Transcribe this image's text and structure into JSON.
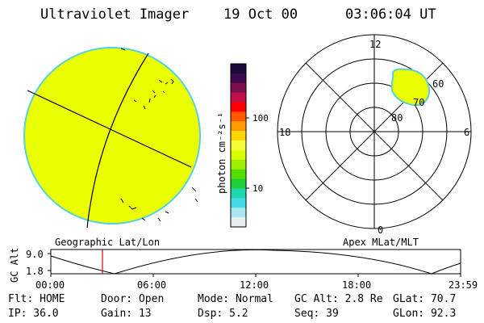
{
  "header": {
    "instrument": "Ultraviolet Imager",
    "date": "19 Oct 00",
    "time": "03:06:04 UT"
  },
  "colors": {
    "disk": "#eaff00",
    "disk_edge": "#57d0e0",
    "line": "#000000",
    "marker": "#e00000"
  },
  "left_panel": {
    "label": "Geographic Lat/Lon"
  },
  "polar_panel": {
    "label": "Apex MLat/MLT",
    "mlt_labels": {
      "top": "12",
      "bottom": "0",
      "left": "18",
      "right": "6"
    },
    "lat_labels": [
      "80",
      "70",
      "60"
    ]
  },
  "colorbar": {
    "unit_label": "photon cm⁻²s⁻¹",
    "ticks": [
      "100",
      "10"
    ],
    "colors": [
      "#1a0a3a",
      "#3b0a4f",
      "#7a0f4a",
      "#c2104a",
      "#ff0000",
      "#ff5a00",
      "#ff9b00",
      "#ffd500",
      "#f4ff3a",
      "#d8ff00",
      "#9bf000",
      "#52e000",
      "#1ecf3a",
      "#20d7b0",
      "#45d8e6",
      "#a8e7ef",
      "#e6eef0"
    ]
  },
  "timeline": {
    "ylabel": "GC Alt",
    "yticks": [
      "9.0",
      "1.8"
    ],
    "xticks": [
      "00:00",
      "06:00",
      "12:00",
      "18:00",
      "23:59"
    ]
  },
  "status": {
    "row1": {
      "flt": "Flt: HOME",
      "door": "Door: Open",
      "mode": "Mode: Normal",
      "gcalt": "GC Alt: 2.8 Re",
      "glat": "GLat:  70.7"
    },
    "row2": {
      "ip": "IP: 36.0",
      "gain": "Gain: 13",
      "dsp": "Dsp:    5.2",
      "seq": "Seq: 39",
      "glon": "GLon:  92.3"
    }
  }
}
